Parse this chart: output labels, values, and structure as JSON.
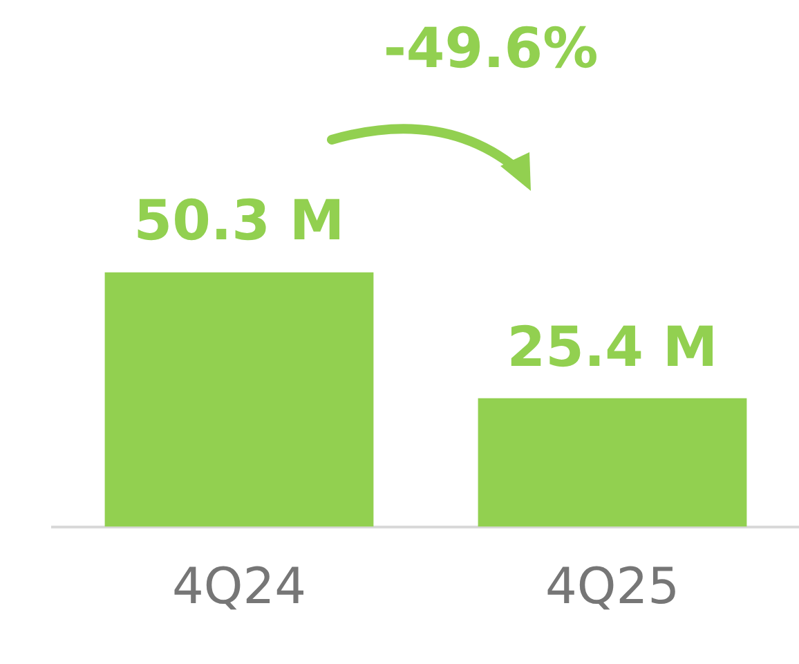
{
  "chart_data": {
    "type": "bar",
    "categories": [
      "4Q24",
      "4Q25"
    ],
    "values": [
      50.3,
      25.4
    ],
    "color": "#92d050",
    "value_labels": [
      "50.3 M",
      "25.4 M"
    ],
    "annotations": [
      "-49.6%"
    ],
    "grid": false,
    "legend": false
  }
}
